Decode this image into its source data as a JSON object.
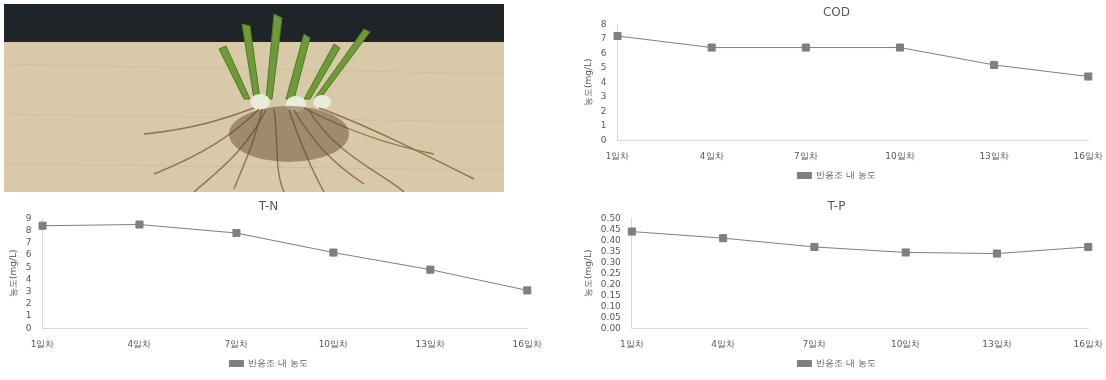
{
  "chart_data": [
    {
      "type": "line",
      "title": "COD",
      "ylabel": "농도(mg/L)",
      "categories": [
        "1일차",
        "4일차",
        "7일차",
        "10일차",
        "13일차",
        "16일차"
      ],
      "series": [
        {
          "name": "반응조 내 농도",
          "color": "#7f7f7f",
          "marker": "square",
          "values": [
            7.2,
            6.4,
            6.4,
            6.4,
            5.2,
            4.4
          ]
        }
      ],
      "ylim": [
        0,
        8
      ],
      "yticks": [
        0,
        1,
        2,
        3,
        4,
        5,
        6,
        7,
        8
      ],
      "grid": false,
      "legend": "bottom"
    },
    {
      "type": "line",
      "title": "T-N",
      "ylabel": "농도(mg/L)",
      "categories": [
        "1일차",
        "4일차",
        "7일차",
        "10일차",
        "13일차",
        "16일차"
      ],
      "series": [
        {
          "name": "반응조 내 농도",
          "color": "#7f7f7f",
          "marker": "square",
          "values": [
            8.4,
            8.5,
            7.8,
            6.2,
            4.8,
            3.1
          ]
        }
      ],
      "ylim": [
        0,
        9
      ],
      "yticks": [
        0,
        1,
        2,
        3,
        4,
        5,
        6,
        7,
        8,
        9
      ],
      "grid": false,
      "legend": "bottom"
    },
    {
      "type": "line",
      "title": "T-P",
      "ylabel": "농도(mg/L)",
      "categories": [
        "1일차",
        "4일차",
        "7일차",
        "10일차",
        "13일차",
        "16일차"
      ],
      "series": [
        {
          "name": "반응조 내 농도",
          "color": "#7f7f7f",
          "marker": "square",
          "values": [
            0.44,
            0.41,
            0.37,
            0.345,
            0.34,
            0.37
          ]
        }
      ],
      "ylim": [
        0,
        0.5
      ],
      "yticks": [
        {
          "value": 0,
          "label": "0.00"
        },
        0.05,
        {
          "value": 0.1,
          "label": "0.10"
        },
        0.15,
        {
          "value": 0.2,
          "label": "0.20"
        },
        0.25,
        {
          "value": 0.3,
          "label": "0.30"
        },
        0.35,
        {
          "value": 0.4,
          "label": "0.40"
        },
        0.45,
        {
          "value": 0.5,
          "label": "0.50"
        }
      ],
      "grid": false,
      "legend": "bottom"
    }
  ]
}
